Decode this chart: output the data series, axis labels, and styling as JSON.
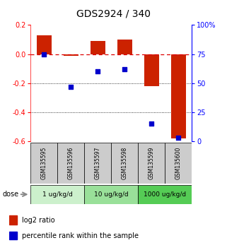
{
  "title": "GDS2924 / 340",
  "samples": [
    "GSM135595",
    "GSM135596",
    "GSM135597",
    "GSM135598",
    "GSM135599",
    "GSM135600"
  ],
  "log2_ratio": [
    0.13,
    -0.01,
    0.09,
    0.1,
    -0.22,
    -0.58
  ],
  "percentile_rank": [
    75,
    47,
    60,
    62,
    15,
    3
  ],
  "ylim_left": [
    -0.6,
    0.2
  ],
  "ylim_right": [
    0,
    100
  ],
  "bar_color": "#cc2200",
  "dot_color": "#0000cc",
  "dose_groups": [
    {
      "label": "1 ug/kg/d",
      "samples": [
        0,
        1
      ],
      "color": "#ccf0cc"
    },
    {
      "label": "10 ug/kg/d",
      "samples": [
        2,
        3
      ],
      "color": "#99e099"
    },
    {
      "label": "1000 ug/kg/d",
      "samples": [
        4,
        5
      ],
      "color": "#55cc55"
    }
  ],
  "dose_label": "dose",
  "legend_bar_label": "log2 ratio",
  "legend_dot_label": "percentile rank within the sample",
  "zero_line_color": "#dd0000",
  "grid_color": "#000000",
  "sample_box_color": "#cccccc",
  "title_fontsize": 10,
  "tick_fontsize": 7,
  "label_fontsize": 7
}
